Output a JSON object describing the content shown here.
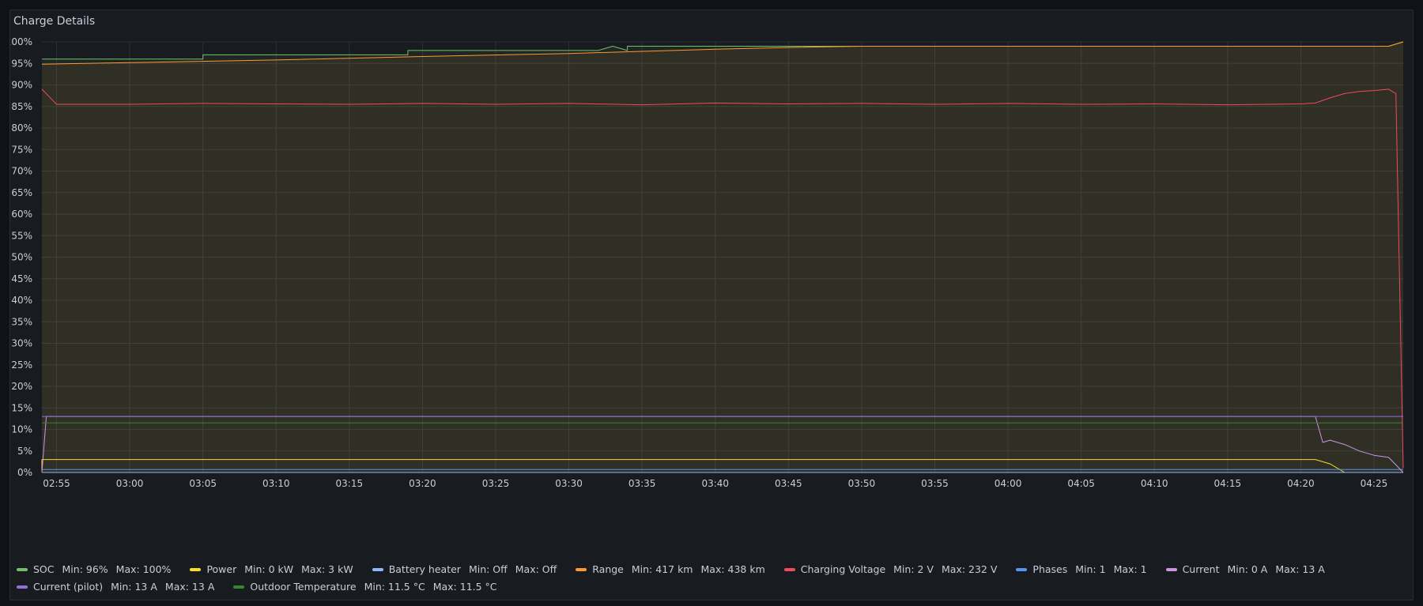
{
  "panel": {
    "title": "Charge Details"
  },
  "chart_data": {
    "type": "line",
    "title": "Charge Details",
    "xlabel": "",
    "ylabel": "",
    "ylim": [
      0,
      100
    ],
    "y_ticks": [
      "0%",
      "5%",
      "10%",
      "15%",
      "20%",
      "25%",
      "30%",
      "35%",
      "40%",
      "45%",
      "50%",
      "55%",
      "60%",
      "65%",
      "70%",
      "75%",
      "80%",
      "85%",
      "90%",
      "95%",
      "100%"
    ],
    "x_ticks": [
      "02:55",
      "03:00",
      "03:05",
      "03:10",
      "03:15",
      "03:20",
      "03:25",
      "03:30",
      "03:35",
      "03:40",
      "03:45",
      "03:50",
      "03:55",
      "04:00",
      "04:05",
      "04:10",
      "04:15",
      "04:20",
      "04:25"
    ],
    "x_range": [
      "02:54",
      "04:27"
    ],
    "grid": true,
    "legend_position": "bottom",
    "series": [
      {
        "name": "SOC",
        "color": "#73bf69",
        "stat_min": "Min: 96%",
        "stat_max": "Max: 100%",
        "x": [
          "02:54",
          "03:05",
          "03:05",
          "03:19",
          "03:19",
          "03:32",
          "03:33",
          "03:34",
          "03:34",
          "03:51",
          "03:51",
          "04:26",
          "04:27"
        ],
        "y": [
          96,
          96,
          97,
          97,
          98,
          98,
          99,
          98,
          99,
          99,
          99,
          99,
          100
        ],
        "fill": true
      },
      {
        "name": "Power",
        "color": "#fade2a",
        "stat_min": "Min: 0 kW",
        "stat_max": "Max: 3 kW",
        "x": [
          "02:54",
          "02:54",
          "04:21",
          "04:22",
          "04:23",
          "04:27"
        ],
        "y": [
          0,
          3,
          3,
          2,
          0,
          0
        ]
      },
      {
        "name": "Battery heater",
        "color": "#8ab8ff",
        "stat_min": "Min: Off",
        "stat_max": "Max: Off",
        "x": [
          "02:54",
          "04:27"
        ],
        "y": [
          0,
          0
        ]
      },
      {
        "name": "Range",
        "color": "#ff9830",
        "stat_min": "Min: 417 km",
        "stat_max": "Max: 438 km",
        "x": [
          "02:54",
          "03:00",
          "03:10",
          "03:20",
          "03:30",
          "03:35",
          "03:40",
          "03:45",
          "03:50",
          "03:55",
          "04:00",
          "04:10",
          "04:20",
          "04:26",
          "04:27"
        ],
        "y": [
          94.8,
          95.2,
          95.8,
          96.6,
          97.3,
          97.8,
          98.3,
          98.7,
          99,
          99,
          99,
          99,
          99,
          99,
          100
        ],
        "fill": true
      },
      {
        "name": "Charging Voltage",
        "color": "#f2495c",
        "stat_min": "Min: 2 V",
        "stat_max": "Max: 232 V",
        "x": [
          "02:54",
          "02:55",
          "03:00",
          "03:05",
          "03:10",
          "03:15",
          "03:20",
          "03:25",
          "03:30",
          "03:35",
          "03:40",
          "03:45",
          "03:50",
          "03:55",
          "04:00",
          "04:05",
          "04:10",
          "04:15",
          "04:20",
          "04:21",
          "04:22",
          "04:23",
          "04:24",
          "04:25",
          "04:26",
          "04:26.5",
          "04:27"
        ],
        "y": [
          89,
          85.5,
          85.5,
          85.7,
          85.6,
          85.5,
          85.7,
          85.5,
          85.7,
          85.4,
          85.8,
          85.6,
          85.7,
          85.5,
          85.7,
          85.5,
          85.6,
          85.4,
          85.6,
          85.8,
          87,
          88,
          88.5,
          88.7,
          89,
          88,
          1
        ]
      },
      {
        "name": "Phases",
        "color": "#5794f2",
        "stat_min": "Min: 1",
        "stat_max": "Max: 1",
        "x": [
          "02:54",
          "04:27"
        ],
        "y": [
          0.7,
          0.7
        ]
      },
      {
        "name": "Current",
        "color": "#ca95e5",
        "stat_min": "Min: 0 A",
        "stat_max": "Max: 13 A",
        "x": [
          "02:54",
          "02:54.3",
          "04:21",
          "04:21.5",
          "04:22",
          "04:23",
          "04:24",
          "04:25",
          "04:26",
          "04:27"
        ],
        "y": [
          0,
          13,
          13,
          7,
          7.5,
          6.5,
          5,
          4,
          3.5,
          0
        ]
      },
      {
        "name": "Current (pilot)",
        "color": "#8f71d9",
        "stat_min": "Min: 13 A",
        "stat_max": "Max: 13 A",
        "x": [
          "02:54",
          "04:27"
        ],
        "y": [
          13,
          13
        ]
      },
      {
        "name": "Outdoor Temperature",
        "color": "#37872d",
        "stat_min": "Min: 11.5 °C",
        "stat_max": "Max: 11.5 °C",
        "x": [
          "02:54",
          "04:27"
        ],
        "y": [
          11.5,
          11.5
        ]
      }
    ]
  }
}
